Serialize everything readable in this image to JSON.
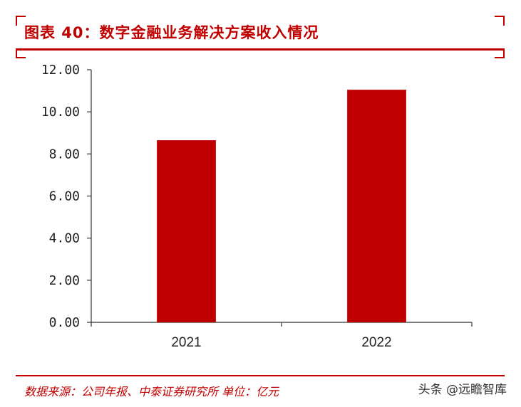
{
  "header": {
    "title": "图表 40：数字金融业务解决方案收入情况"
  },
  "footer": {
    "source": "数据来源：公司年报、中泰证券研究所 单位：亿元",
    "watermark": "头条 @远瞻智库"
  },
  "colors": {
    "accent": "#c00000",
    "bar": "#c00000",
    "axis": "#333333"
  },
  "chart_data": {
    "type": "bar",
    "categories": [
      "2021",
      "2022"
    ],
    "values": [
      8.65,
      11.05
    ],
    "ylim": [
      0,
      12
    ],
    "yticks": [
      "0.00",
      "2.00",
      "4.00",
      "6.00",
      "8.00",
      "10.00",
      "12.00"
    ],
    "xlabel": "",
    "ylabel": "",
    "grid": false,
    "legend": false
  }
}
